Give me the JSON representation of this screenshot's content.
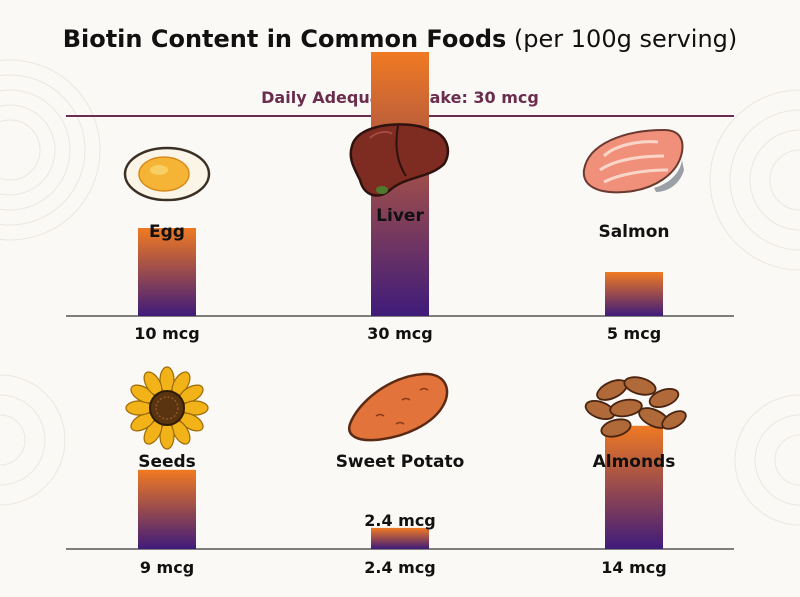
{
  "title": {
    "main": "Biotin Content in Common Foods",
    "sub": "(per 100g serving)"
  },
  "reference": {
    "label": "Daily Adequate Intake: 30 mcg",
    "value": 30,
    "color": "#6b2d4e"
  },
  "colors": {
    "bar_top": "#f07a22",
    "bar_bottom": "#3f1b7a",
    "baseline": "#555555"
  },
  "chart_data": {
    "type": "bar",
    "unit": "mcg",
    "ylim": [
      0,
      30
    ],
    "grid": false,
    "title": "Biotin Content in Common Foods (per 100g serving)",
    "reference_line": {
      "label": "Daily Adequate Intake: 30 mcg",
      "value": 30
    },
    "categories": [
      "Egg",
      "Liver",
      "Salmon",
      "Seeds",
      "Sweet Potato",
      "Almonds"
    ],
    "values": [
      10,
      30,
      5,
      9,
      2.4,
      14
    ],
    "value_labels": [
      "10 mcg",
      "30 mcg",
      "5 mcg",
      "9 mcg",
      "2.4 mcg",
      "14 mcg"
    ],
    "annotations": [
      {
        "category": "Sweet Potato",
        "text": "2.4 mcg"
      }
    ],
    "icons": [
      "boiled-egg-icon",
      "liver-icon",
      "salmon-fillet-icon",
      "sunflower-icon",
      "sweet-potato-icon",
      "almonds-icon"
    ]
  }
}
